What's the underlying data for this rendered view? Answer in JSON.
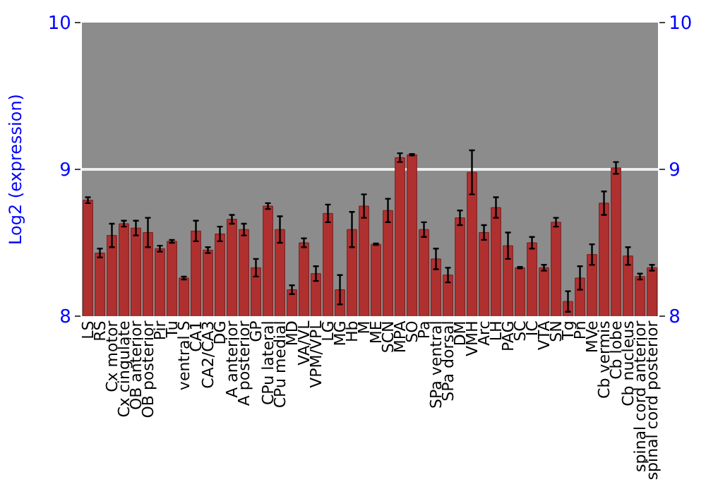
{
  "chart_data": {
    "type": "bar",
    "ylabel": "Log2 (expression)",
    "categories": [
      "LS",
      "RS",
      "Cx motor",
      "Cx cingulate",
      "OB anterior",
      "OB posterior",
      "Pir",
      "Tu",
      "ventral S",
      "CA1",
      "CA2/CA3",
      "DG",
      "A anterior",
      "A posterior",
      "GP",
      "CPu lateral",
      "CPu medial",
      "MD",
      "VA/VL",
      "VPM/VPL",
      "LG",
      "MG",
      "Hb",
      "M",
      "ME",
      "SCN",
      "MPA",
      "SO",
      "Pa",
      "SPa ventral",
      "SPa dorsal",
      "DM",
      "VMH",
      "Arc",
      "LH",
      "PAG",
      "SC",
      "IC",
      "VTA",
      "SN",
      "Tg",
      "Pn",
      "MVe",
      "Cb vermis",
      "Cb lobe",
      "Cb nucleus",
      "spinal cord anterior",
      "spinal cord posterior"
    ],
    "values": [
      8.79,
      8.43,
      8.55,
      8.63,
      8.6,
      8.57,
      8.46,
      8.51,
      8.26,
      8.58,
      8.45,
      8.56,
      8.66,
      8.59,
      8.33,
      8.75,
      8.59,
      8.18,
      8.5,
      8.29,
      8.7,
      8.18,
      8.59,
      8.75,
      8.49,
      8.72,
      9.08,
      9.1,
      8.59,
      8.39,
      8.28,
      8.67,
      8.98,
      8.57,
      8.74,
      8.48,
      8.33,
      8.5,
      8.33,
      8.64,
      8.1,
      8.26,
      8.42,
      8.77,
      9.01,
      8.41,
      8.27,
      8.33
    ],
    "errors": [
      0.02,
      0.03,
      0.08,
      0.02,
      0.05,
      0.1,
      0.02,
      0.01,
      0.01,
      0.07,
      0.02,
      0.05,
      0.03,
      0.04,
      0.06,
      0.02,
      0.09,
      0.03,
      0.03,
      0.05,
      0.06,
      0.1,
      0.12,
      0.08,
      0.005,
      0.08,
      0.03,
      0.005,
      0.05,
      0.07,
      0.05,
      0.05,
      0.15,
      0.05,
      0.07,
      0.09,
      0.005,
      0.04,
      0.02,
      0.03,
      0.07,
      0.08,
      0.07,
      0.08,
      0.04,
      0.06,
      0.02,
      0.02
    ],
    "color": "#b03030",
    "ylim": [
      8,
      10
    ],
    "yticks": [
      8,
      9,
      10
    ],
    "y2lim": [
      8,
      10
    ],
    "y2ticks": [
      8,
      9,
      10
    ],
    "grid": "y"
  }
}
